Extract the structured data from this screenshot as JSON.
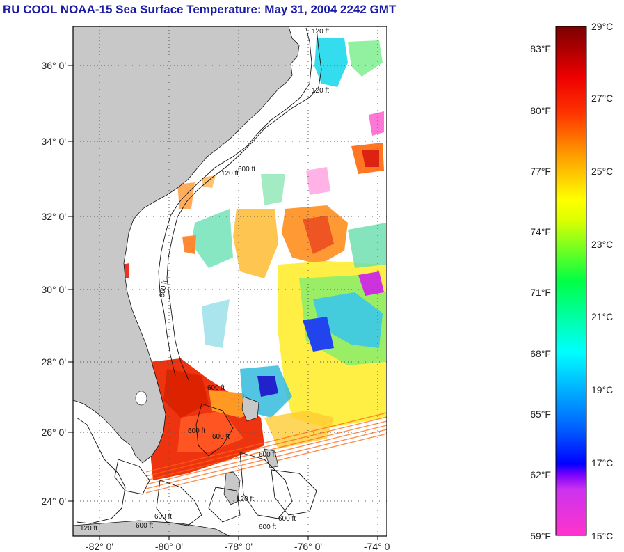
{
  "title": "RU COOL  NOAA-15  Sea Surface Temperature:  May 31, 2004 2242 GMT",
  "map": {
    "lat_labels": [
      "36° 0'",
      "34° 0'",
      "32° 0'",
      "30° 0'",
      "28° 0'",
      "26° 0'",
      "24° 0'"
    ],
    "lon_labels": [
      "-82° 0'",
      "-80° 0'",
      "-78° 0'",
      "-76° 0'",
      "-74° 0'"
    ],
    "contour_labels": [
      "120 ft",
      "120 ft",
      "120 ft",
      "600 ft",
      "600 ft",
      "600 ft",
      "600 ft",
      "600 ft",
      "120 ft",
      "600 ft",
      "600 ft",
      "600 ft",
      "120 ft",
      "600 ft",
      "600 ft"
    ],
    "colors": {
      "land": "#c8c8c8",
      "cloud": "#ffffff",
      "grid": "#555555"
    }
  },
  "colorbar": {
    "fahrenheit_labels": [
      "83°F",
      "80°F",
      "77°F",
      "74°F",
      "71°F",
      "68°F",
      "65°F",
      "62°F",
      "59°F"
    ],
    "celsius_labels": [
      "29°C",
      "27°C",
      "25°C",
      "23°C",
      "21°C",
      "19°C",
      "17°C",
      "15°C"
    ],
    "range_c": [
      15,
      29
    ],
    "stops": [
      "#ff33cc",
      "#aa33ee",
      "#0000ff",
      "#00a0ff",
      "#00ffff",
      "#00ff66",
      "#ccff00",
      "#ffff00",
      "#ff9900",
      "#ff2200",
      "#cc0000",
      "#7a0000"
    ]
  }
}
